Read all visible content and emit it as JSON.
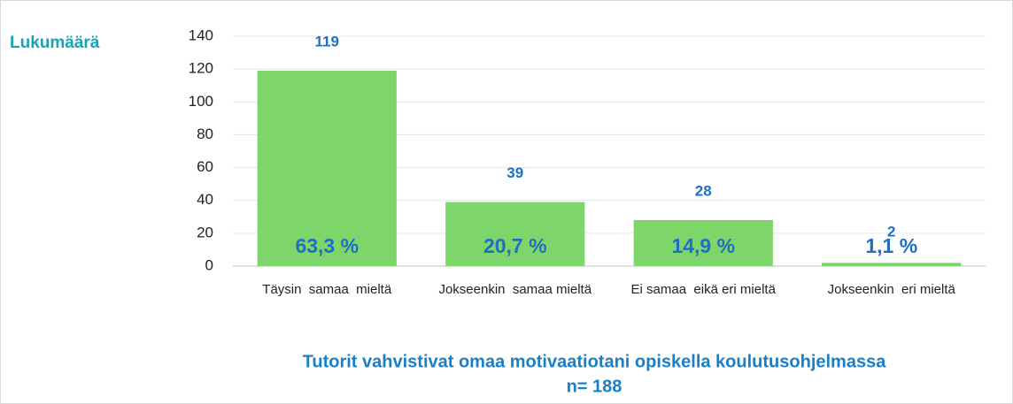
{
  "chart_data": {
    "type": "bar",
    "title": "Tutorit vahvistivat omaa motivaatiotani opiskella koulutusohjelmassa",
    "subtitle": "n= 188",
    "y_label": "Lukumäärä",
    "categories": [
      "Täysin  samaa  mieltä",
      "Jokseenkin  samaa mieltä",
      "Ei samaa  eikä eri mieltä",
      "Jokseenkin  eri mieltä"
    ],
    "values": [
      119,
      39,
      28,
      2
    ],
    "percent_labels": [
      "63,3 %",
      "20,7 %",
      "14,9 %",
      "1,1 %"
    ],
    "color": "#7ed66b",
    "ylim": [
      0,
      140
    ],
    "yticks": [
      0,
      20,
      40,
      60,
      80,
      100,
      120,
      140
    ],
    "grid": true
  }
}
